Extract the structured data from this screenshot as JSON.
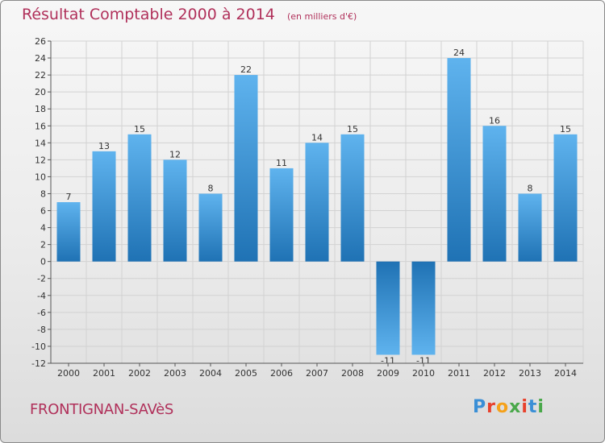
{
  "title": "Résultat Comptable 2000 à 2014",
  "subtitle": "(en milliers d'€)",
  "commune": "FRONTIGNAN-SAVèS",
  "logo": {
    "letters": [
      "P",
      "r",
      "o",
      "x",
      "i",
      "t",
      "i"
    ],
    "colors": [
      "#3a8fd6",
      "#e8412c",
      "#f5a11a",
      "#49a84a",
      "#e8412c",
      "#3a8fd6",
      "#49a84a"
    ]
  },
  "colors": {
    "bar_top": "#5fb3ee",
    "bar_bottom": "#1f72b4",
    "accent": "#b0305a"
  },
  "chart_data": {
    "type": "bar",
    "categories": [
      "2000",
      "2001",
      "2002",
      "2003",
      "2004",
      "2005",
      "2006",
      "2007",
      "2008",
      "2009",
      "2010",
      "2011",
      "2012",
      "2013",
      "2014"
    ],
    "values": [
      7,
      13,
      15,
      12,
      8,
      22,
      11,
      14,
      15,
      -11,
      -11,
      24,
      16,
      8,
      15
    ],
    "title": "Résultat Comptable 2000 à 2014",
    "ylim": [
      -12,
      26
    ],
    "yticks": [
      26,
      24,
      22,
      20,
      18,
      16,
      14,
      12,
      10,
      8,
      6,
      4,
      2,
      0,
      -2,
      -4,
      -6,
      -8,
      -10,
      -12
    ],
    "grid": true
  }
}
